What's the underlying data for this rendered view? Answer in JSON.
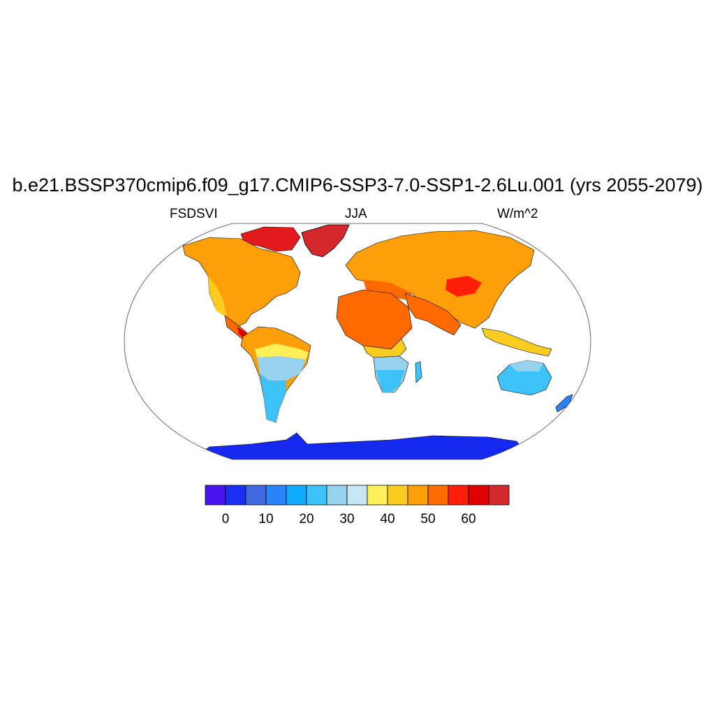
{
  "title": "b.e21.BSSP370cmip6.f09_g17.CMIP6-SSP3-7.0-SSP1-2.6Lu.001 (yrs 2055-2079)",
  "left_label": "FSDSVI",
  "center_label": "JJA",
  "right_label": "W/m^2",
  "colorbar": {
    "colors": [
      "#4a14f0",
      "#1a2ff0",
      "#4169e1",
      "#2882f8",
      "#10aaff",
      "#3dc3f7",
      "#96d2ee",
      "#c7e6f5",
      "#fff05a",
      "#fbcc20",
      "#fd9f08",
      "#fe6a00",
      "#fe1e0a",
      "#de0000",
      "#d4282c"
    ],
    "tick_labels": [
      "0",
      "10",
      "20",
      "30",
      "40",
      "50",
      "60"
    ]
  },
  "legend_colors": {
    "ocean": "#ffffff",
    "antarctica": "#1428f0",
    "greenland": "#d4282c",
    "coastline": "#000000"
  }
}
